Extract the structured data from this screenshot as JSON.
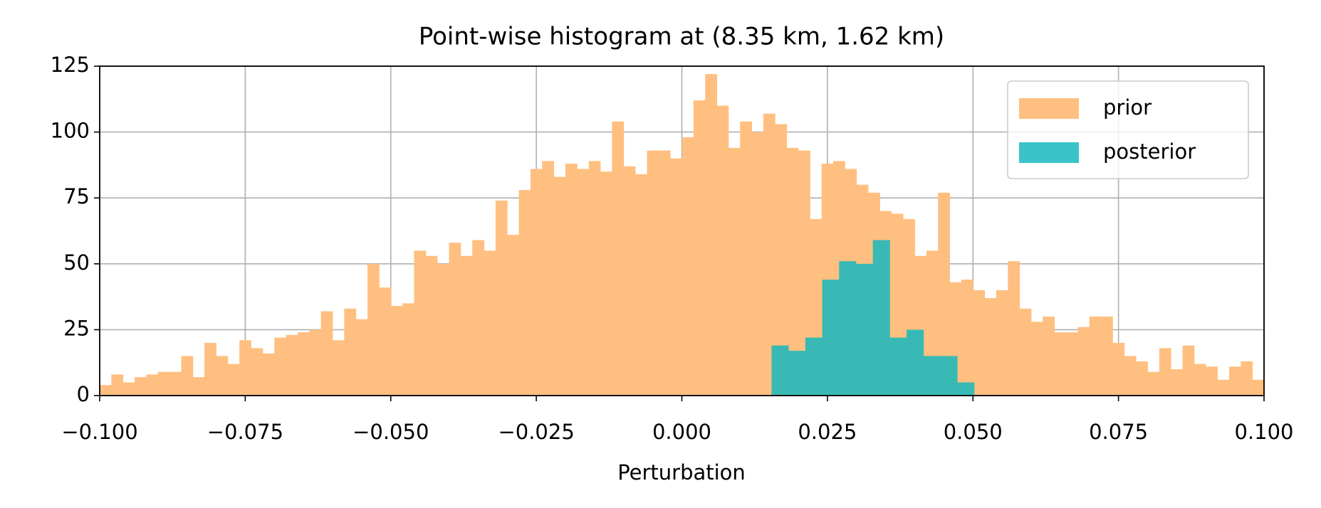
{
  "chart_data": {
    "type": "histogram",
    "title": "Point-wise histogram at (8.35 km, 1.62 km)",
    "x_label": "Perturbation",
    "xlim": [
      -0.1,
      0.1
    ],
    "ylim": [
      0,
      125
    ],
    "xticks": [
      {
        "value": -0.1,
        "label": "−0.100"
      },
      {
        "value": -0.075,
        "label": "−0.075"
      },
      {
        "value": -0.05,
        "label": "−0.050"
      },
      {
        "value": -0.025,
        "label": "−0.025"
      },
      {
        "value": 0,
        "label": "0.000"
      },
      {
        "value": 0.025,
        "label": "0.025"
      },
      {
        "value": 0.05,
        "label": "0.050"
      },
      {
        "value": 0.075,
        "label": "0.075"
      },
      {
        "value": 0.1,
        "label": "0.100"
      }
    ],
    "yticks": [
      0,
      25,
      50,
      75,
      100,
      125
    ],
    "grid": true,
    "legend": "upper right",
    "series": [
      {
        "name": "prior",
        "color": "#ffbf80",
        "bins": [
          -0.1,
          -0.098,
          -0.096,
          -0.094,
          -0.092,
          -0.09,
          -0.088,
          -0.086,
          -0.084,
          -0.082,
          -0.08,
          -0.078,
          -0.076,
          -0.074,
          -0.072,
          -0.07,
          -0.068,
          -0.066,
          -0.064,
          -0.062,
          -0.06,
          -0.058,
          -0.056,
          -0.054,
          -0.052,
          -0.05,
          -0.048,
          -0.046,
          -0.044,
          -0.042,
          -0.04,
          -0.038,
          -0.036,
          -0.034,
          -0.032,
          -0.03,
          -0.028,
          -0.026,
          -0.024,
          -0.022,
          -0.02,
          -0.018,
          -0.016,
          -0.014,
          -0.012,
          -0.01,
          -0.008,
          -0.006,
          -0.004,
          -0.002,
          0,
          0.002,
          0.004,
          0.006,
          0.008,
          0.01,
          0.012,
          0.014,
          0.016,
          0.018,
          0.02,
          0.022,
          0.024,
          0.026,
          0.028,
          0.03,
          0.032,
          0.034,
          0.036,
          0.038,
          0.04,
          0.042,
          0.044,
          0.046,
          0.048,
          0.05,
          0.052,
          0.054,
          0.056,
          0.058,
          0.06,
          0.062,
          0.064,
          0.066,
          0.068,
          0.07,
          0.072,
          0.074,
          0.076,
          0.078,
          0.08,
          0.082,
          0.084,
          0.086,
          0.088,
          0.09,
          0.092,
          0.094,
          0.096,
          0.098,
          0.1
        ],
        "values": [
          4,
          8,
          5,
          7,
          8,
          9,
          9,
          15,
          7,
          20,
          15,
          12,
          21,
          18,
          16,
          22,
          23,
          24,
          25,
          32,
          21,
          33,
          29,
          50,
          41,
          34,
          35,
          55,
          53,
          50,
          58,
          53,
          59,
          55,
          74,
          61,
          78,
          86,
          89,
          83,
          88,
          86,
          89,
          85,
          104,
          87,
          84,
          93,
          93,
          90,
          98,
          112,
          122,
          110,
          94,
          104,
          100,
          107,
          103,
          94,
          93,
          67,
          88,
          89,
          86,
          80,
          77,
          70,
          69,
          67,
          53,
          55,
          77,
          43,
          44,
          40,
          37,
          40,
          51,
          33,
          28,
          30,
          24,
          24,
          26,
          30,
          30,
          20,
          15,
          13,
          9,
          18,
          10,
          19,
          12,
          11,
          6,
          11,
          13,
          6
        ]
      },
      {
        "name": "posterior",
        "color": "#17b9bf",
        "bins": [
          0.0154,
          0.0183,
          0.0212,
          0.0241,
          0.027,
          0.0299,
          0.0328,
          0.0357,
          0.0386,
          0.0415,
          0.0444,
          0.0473,
          0.0502
        ],
        "values": [
          19,
          17,
          22,
          44,
          51,
          50,
          59,
          22,
          25,
          15,
          15,
          5
        ]
      }
    ]
  }
}
